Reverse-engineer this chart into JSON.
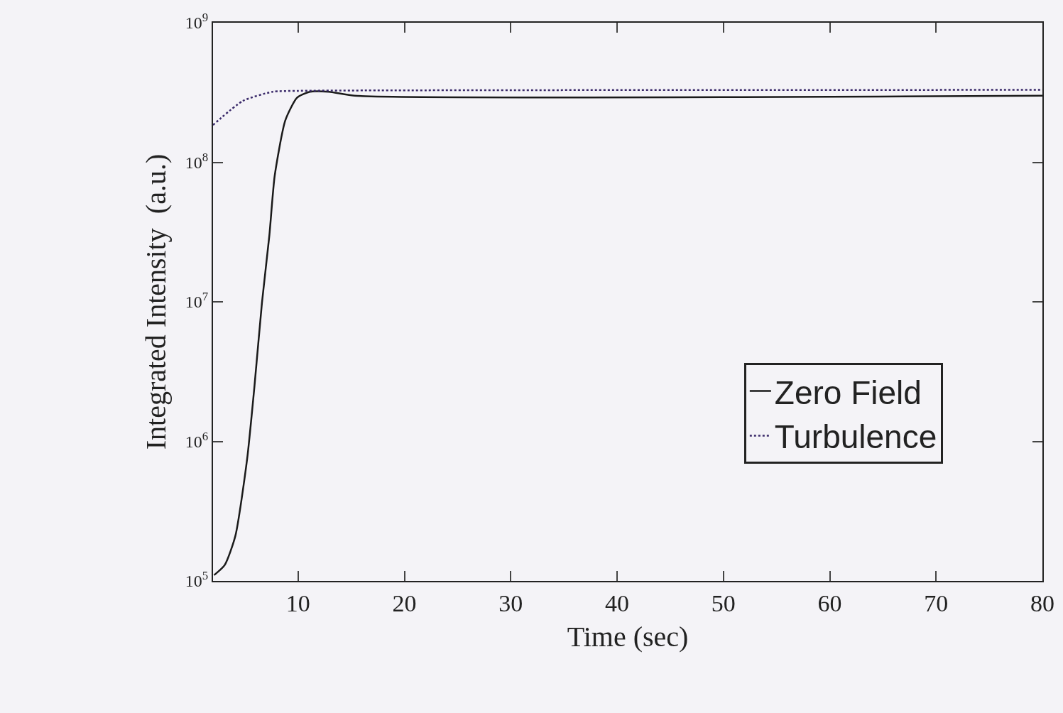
{
  "chart_data": {
    "type": "line",
    "xlabel": "Time (sec)",
    "ylabel": "Integrated Intensity  (a.u.)",
    "log": "y",
    "grid": false,
    "legend": "right",
    "xlim": [
      2,
      80
    ],
    "ylim": [
      100000,
      1000000000
    ],
    "xticks": [
      10,
      20,
      30,
      40,
      50,
      60,
      70,
      80
    ],
    "yticks": [
      {
        "value": 100000,
        "label": "10$^{5}$"
      },
      {
        "value": 1000000,
        "label": "10$^{6}$"
      },
      {
        "value": 10000000,
        "label": "10$^{7}$"
      },
      {
        "value": 100000000,
        "label": "10$^{8}$"
      },
      {
        "value": 1000000000,
        "label": "10$^{9}$"
      }
    ],
    "series": [
      {
        "name": "Zero Field",
        "color": "#1a1a1a",
        "line_style": "solid",
        "x": [
          2.1,
          3.1,
          4.1,
          5.2,
          5.9,
          6.6,
          7.3,
          7.8,
          8.8,
          9.9,
          11.1,
          12.9,
          15.3,
          80
        ],
        "values": [
          110000,
          130000,
          210000,
          740000,
          2500000,
          9800000,
          30000000,
          80000000,
          200000000,
          290000000,
          320000000,
          320000000,
          300000000,
          300000000
        ]
      },
      {
        "name": "Turbulence",
        "color": "#3a2a6a",
        "line_style": "dotted",
        "x": [
          2,
          4.8,
          7.6,
          10,
          80
        ],
        "values": [
          185000000,
          275000000,
          320000000,
          325000000,
          330000000
        ]
      }
    ]
  }
}
